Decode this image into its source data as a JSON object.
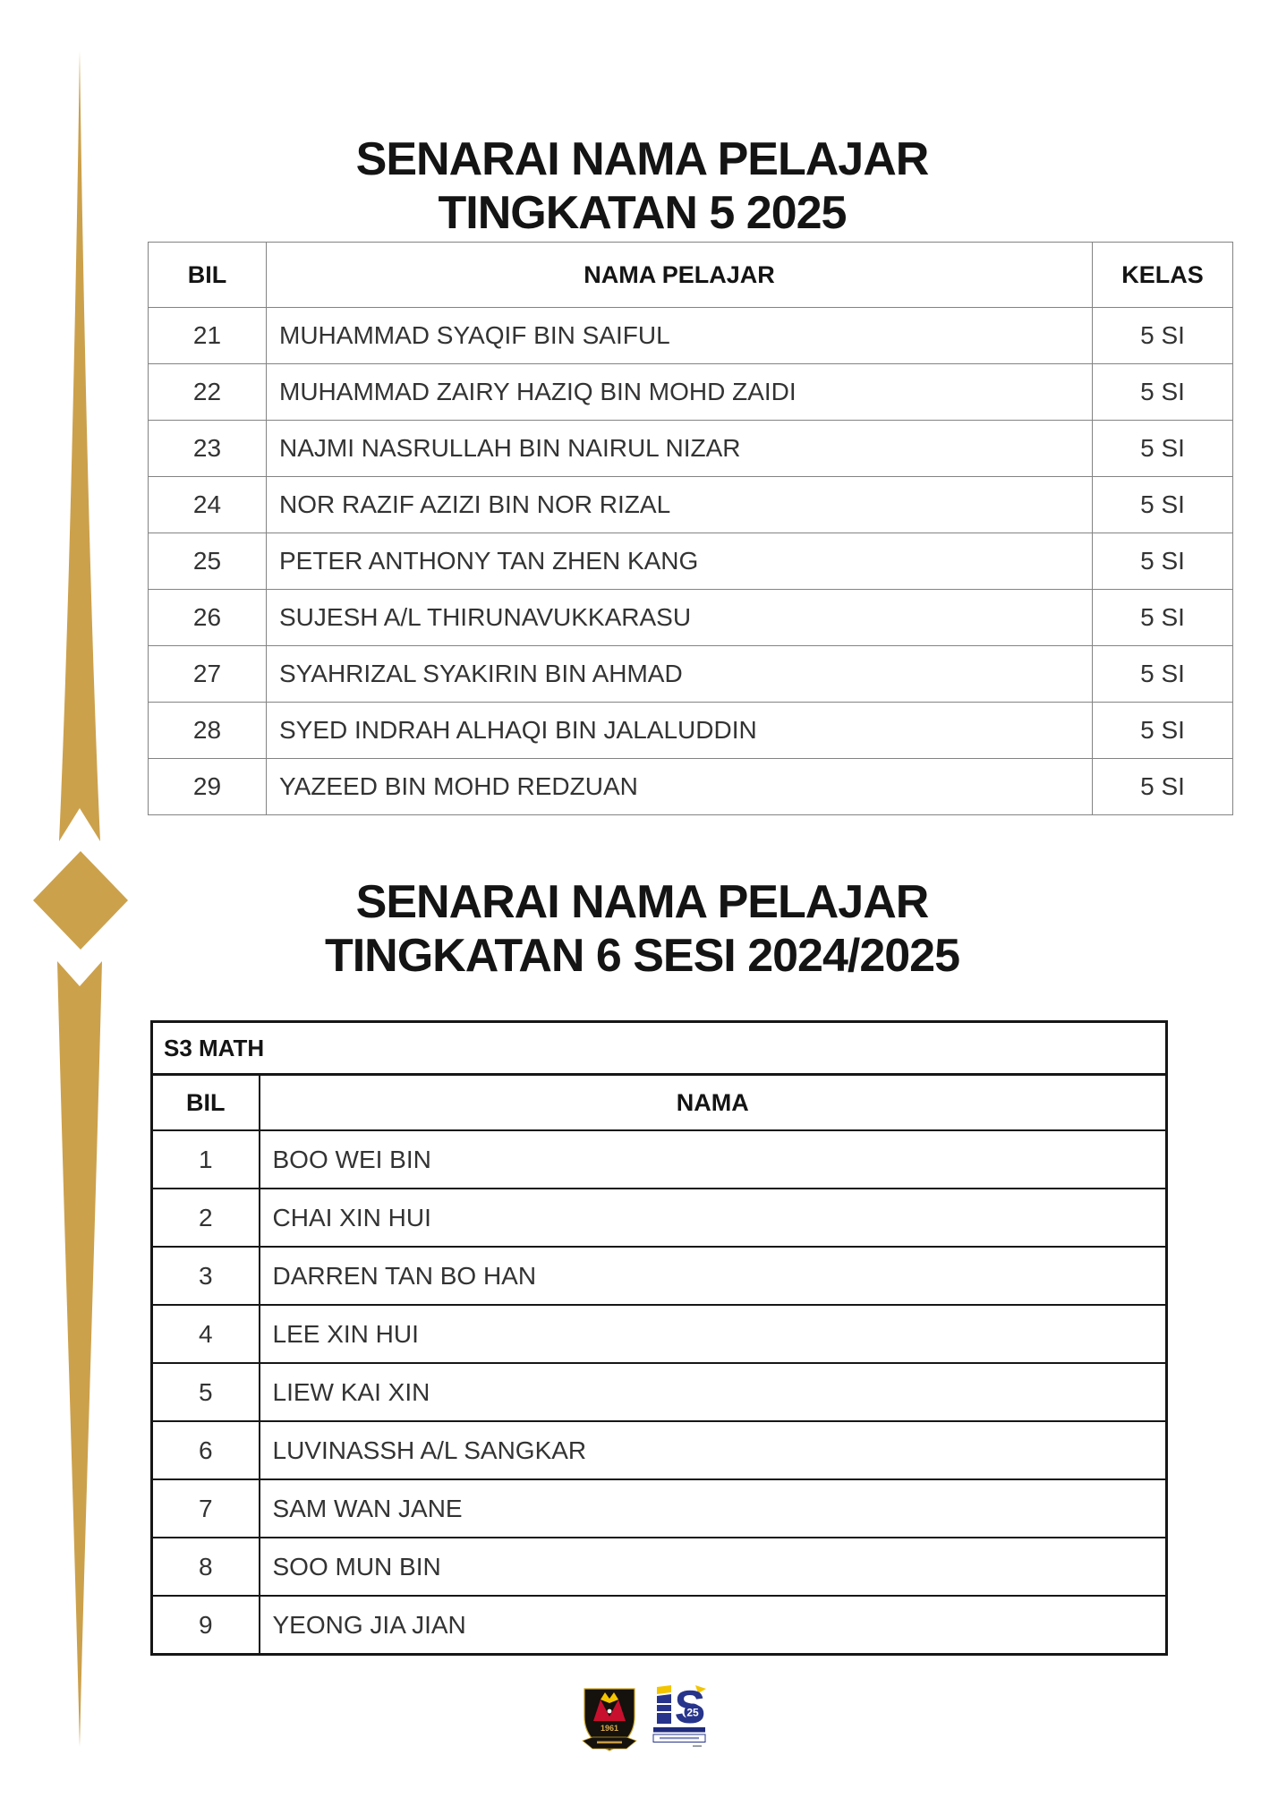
{
  "colors": {
    "gold": "#CCA14C",
    "table1_border": "#838383",
    "table2_border": "#161616",
    "title_text": "#141414",
    "cell_text": "#333333",
    "crest_black": "#15110D",
    "crest_red": "#C8102E",
    "crest_yellow": "#F2C500",
    "crest_gold": "#D7A94B",
    "logo_navy": "#27348B",
    "logo_yellow": "#F2C500"
  },
  "section1": {
    "title_line1": "SENARAI NAMA PELAJAR",
    "title_line2": "TINGKATAN 5 2025"
  },
  "table1": {
    "col_bil": "BIL",
    "col_nama": "NAMA PELAJAR",
    "col_kelas": "KELAS",
    "rows": [
      {
        "bil": "21",
        "nama": "MUHAMMAD SYAQIF BIN SAIFUL",
        "kelas": "5 SI"
      },
      {
        "bil": "22",
        "nama": "MUHAMMAD ZAIRY HAZIQ BIN MOHD ZAIDI",
        "kelas": "5 SI"
      },
      {
        "bil": "23",
        "nama": "NAJMI NASRULLAH BIN NAIRUL NIZAR",
        "kelas": "5 SI"
      },
      {
        "bil": "24",
        "nama": "NOR RAZIF AZIZI BIN NOR RIZAL",
        "kelas": "5 SI"
      },
      {
        "bil": "25",
        "nama": "PETER ANTHONY TAN ZHEN KANG",
        "kelas": "5 SI"
      },
      {
        "bil": "26",
        "nama": "SUJESH A/L THIRUNAVUKKARASU",
        "kelas": "5 SI"
      },
      {
        "bil": "27",
        "nama": "SYAHRIZAL SYAKIRIN BIN AHMAD",
        "kelas": "5 SI"
      },
      {
        "bil": "28",
        "nama": "SYED INDRAH ALHAQI BIN JALALUDDIN",
        "kelas": "5 SI"
      },
      {
        "bil": "29",
        "nama": "YAZEED BIN MOHD REDZUAN",
        "kelas": "5 SI"
      }
    ]
  },
  "section2": {
    "title_line1": "SENARAI NAMA PELAJAR",
    "title_line2": "TINGKATAN 6 SESI 2024/2025"
  },
  "table2": {
    "group_label": "S3 MATH",
    "col_bil": "BIL",
    "col_nama": "NAMA",
    "rows": [
      {
        "bil": "1",
        "nama": "BOO WEI BIN"
      },
      {
        "bil": "2",
        "nama": "CHAI XIN HUI"
      },
      {
        "bil": "3",
        "nama": "DARREN TAN BO HAN"
      },
      {
        "bil": "4",
        "nama": "LEE XIN HUI"
      },
      {
        "bil": "5",
        "nama": "LIEW KAI XIN"
      },
      {
        "bil": "6",
        "nama": "LUVINASSH A/L SANGKAR"
      },
      {
        "bil": "7",
        "nama": "SAM WAN JANE"
      },
      {
        "bil": "8",
        "nama": "SOO MUN BIN"
      },
      {
        "bil": "9",
        "nama": "YEONG JIA JIAN"
      }
    ]
  },
  "logos": {
    "crest_year": "1961",
    "monogram": "S",
    "anniversary": "25"
  }
}
